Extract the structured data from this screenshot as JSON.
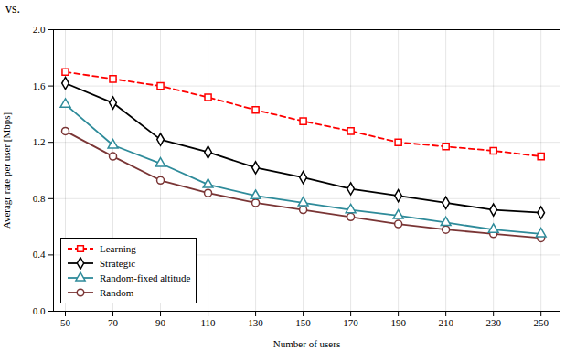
{
  "chart_data": {
    "type": "line",
    "annotations": [
      "vs."
    ],
    "xlabel": "Number of users",
    "ylabel": "Averagr rate per user [Mbps]",
    "x": [
      50,
      70,
      90,
      110,
      130,
      150,
      170,
      190,
      210,
      230,
      250
    ],
    "series": [
      {
        "name": "Learning",
        "color": "#ff0000",
        "marker": "square",
        "line_style": "dashed",
        "values": [
          1.7,
          1.65,
          1.6,
          1.52,
          1.43,
          1.35,
          1.28,
          1.2,
          1.17,
          1.14,
          1.1
        ]
      },
      {
        "name": "Strategic",
        "color": "#000000",
        "marker": "diamond",
        "line_style": "solid",
        "values": [
          1.62,
          1.48,
          1.22,
          1.13,
          1.02,
          0.95,
          0.87,
          0.82,
          0.77,
          0.72,
          0.7
        ]
      },
      {
        "name": "Random-fixed altitude",
        "color": "#2e8b9a",
        "marker": "triangle",
        "line_style": "solid",
        "values": [
          1.47,
          1.18,
          1.05,
          0.9,
          0.82,
          0.77,
          0.72,
          0.68,
          0.63,
          0.58,
          0.55
        ]
      },
      {
        "name": "Random",
        "color": "#7a3535",
        "marker": "circle",
        "line_style": "solid",
        "values": [
          1.28,
          1.1,
          0.93,
          0.84,
          0.77,
          0.72,
          0.67,
          0.62,
          0.58,
          0.55,
          0.52
        ]
      }
    ],
    "xlim": [
      45,
      258
    ],
    "xticks": [
      50,
      70,
      90,
      110,
      130,
      150,
      170,
      190,
      210,
      230,
      250
    ],
    "ylim": [
      0,
      2.0
    ],
    "yticks": [
      {
        "value": 0,
        "label": "0.0"
      },
      0.4,
      0.8,
      1.2,
      1.6,
      {
        "value": 2,
        "label": "2.0"
      }
    ],
    "grid": true,
    "legend": "lower left"
  }
}
